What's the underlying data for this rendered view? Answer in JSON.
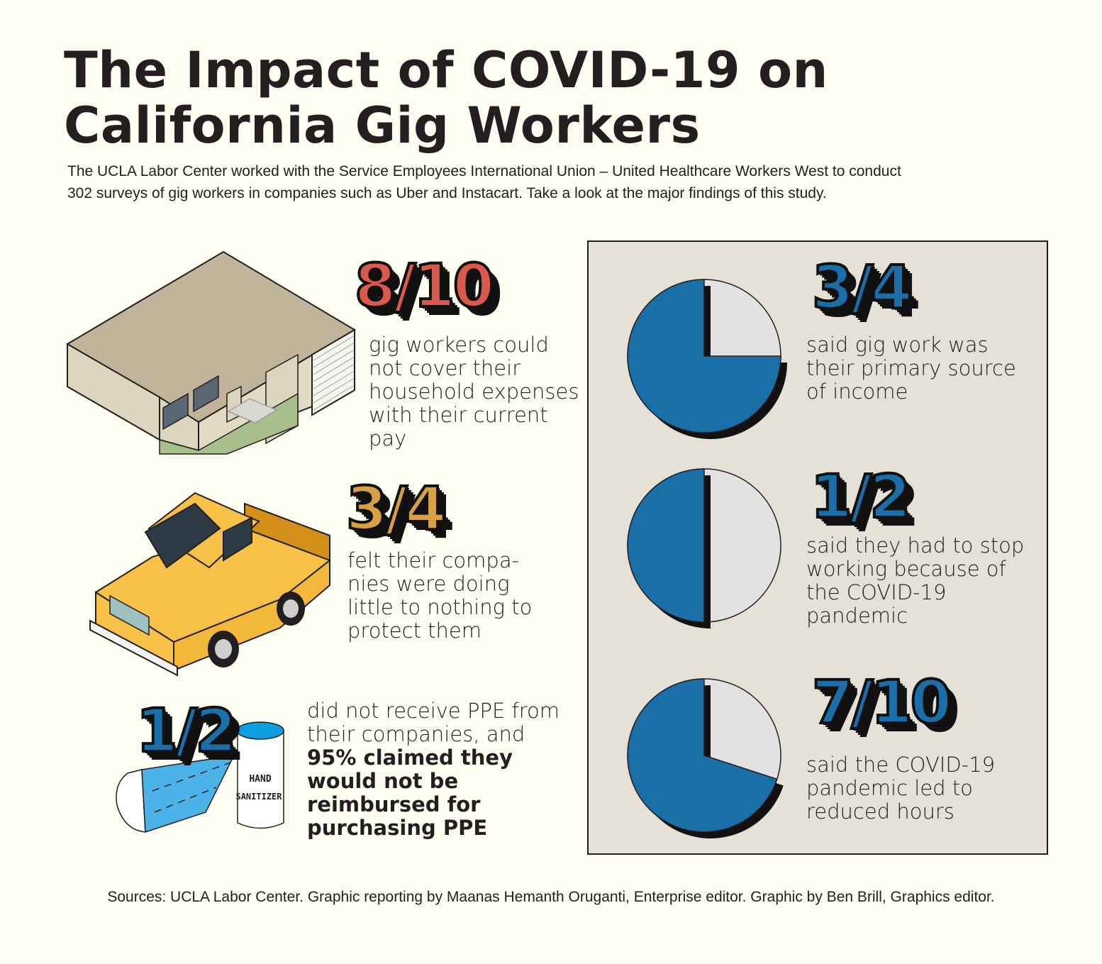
{
  "header": {
    "title": "The Impact of COVID-19 on California Gig Workers",
    "intro": "The UCLA Labor Center worked with the Service Employees International Union – United Healthcare Workers West to conduct 302 surveys of gig workers in companies such as Uber and Instacart. Take a look at the major findings of this study."
  },
  "left_stats": [
    {
      "value": "8/10",
      "color": "#d9594c",
      "text": "gig workers could not cover their household expenses with their current pay",
      "icon": "house-icon"
    },
    {
      "value": "3/4",
      "color": "#d6a043",
      "text": "felt  their compa-nies were doing little to nothing to protect them",
      "icon": "car-icon"
    },
    {
      "value": "1/2",
      "color": "#1b6fa8",
      "text": "did not receive PPE from their companies, and",
      "bold_text": "95% claimed they would not be reimbursed for purchasing PPE",
      "icon": "ppe-icon",
      "label": "HAND SANITIZER"
    }
  ],
  "right_stats": [
    {
      "value": "3/4",
      "fraction": 0.75,
      "text": "said gig work was their primary source of income"
    },
    {
      "value": "1/2",
      "fraction": 0.5,
      "text": "said they had to stop working because of the COVID-19 pandemic"
    },
    {
      "value": "7/10",
      "fraction": 0.7,
      "text": "said the COVID-19 pandemic led to reduced hours"
    }
  ],
  "colors": {
    "pie_fill": "#1b6fa8",
    "pie_rest": "#e2e2e2",
    "panel": "#e6e1d7",
    "background": "#fdfdf2"
  },
  "footer": {
    "sources": "Sources: UCLA Labor Center. Graphic reporting by Maanas Hemanth Oruganti, Enterprise editor. Graphic by Ben Brill, Graphics editor."
  }
}
